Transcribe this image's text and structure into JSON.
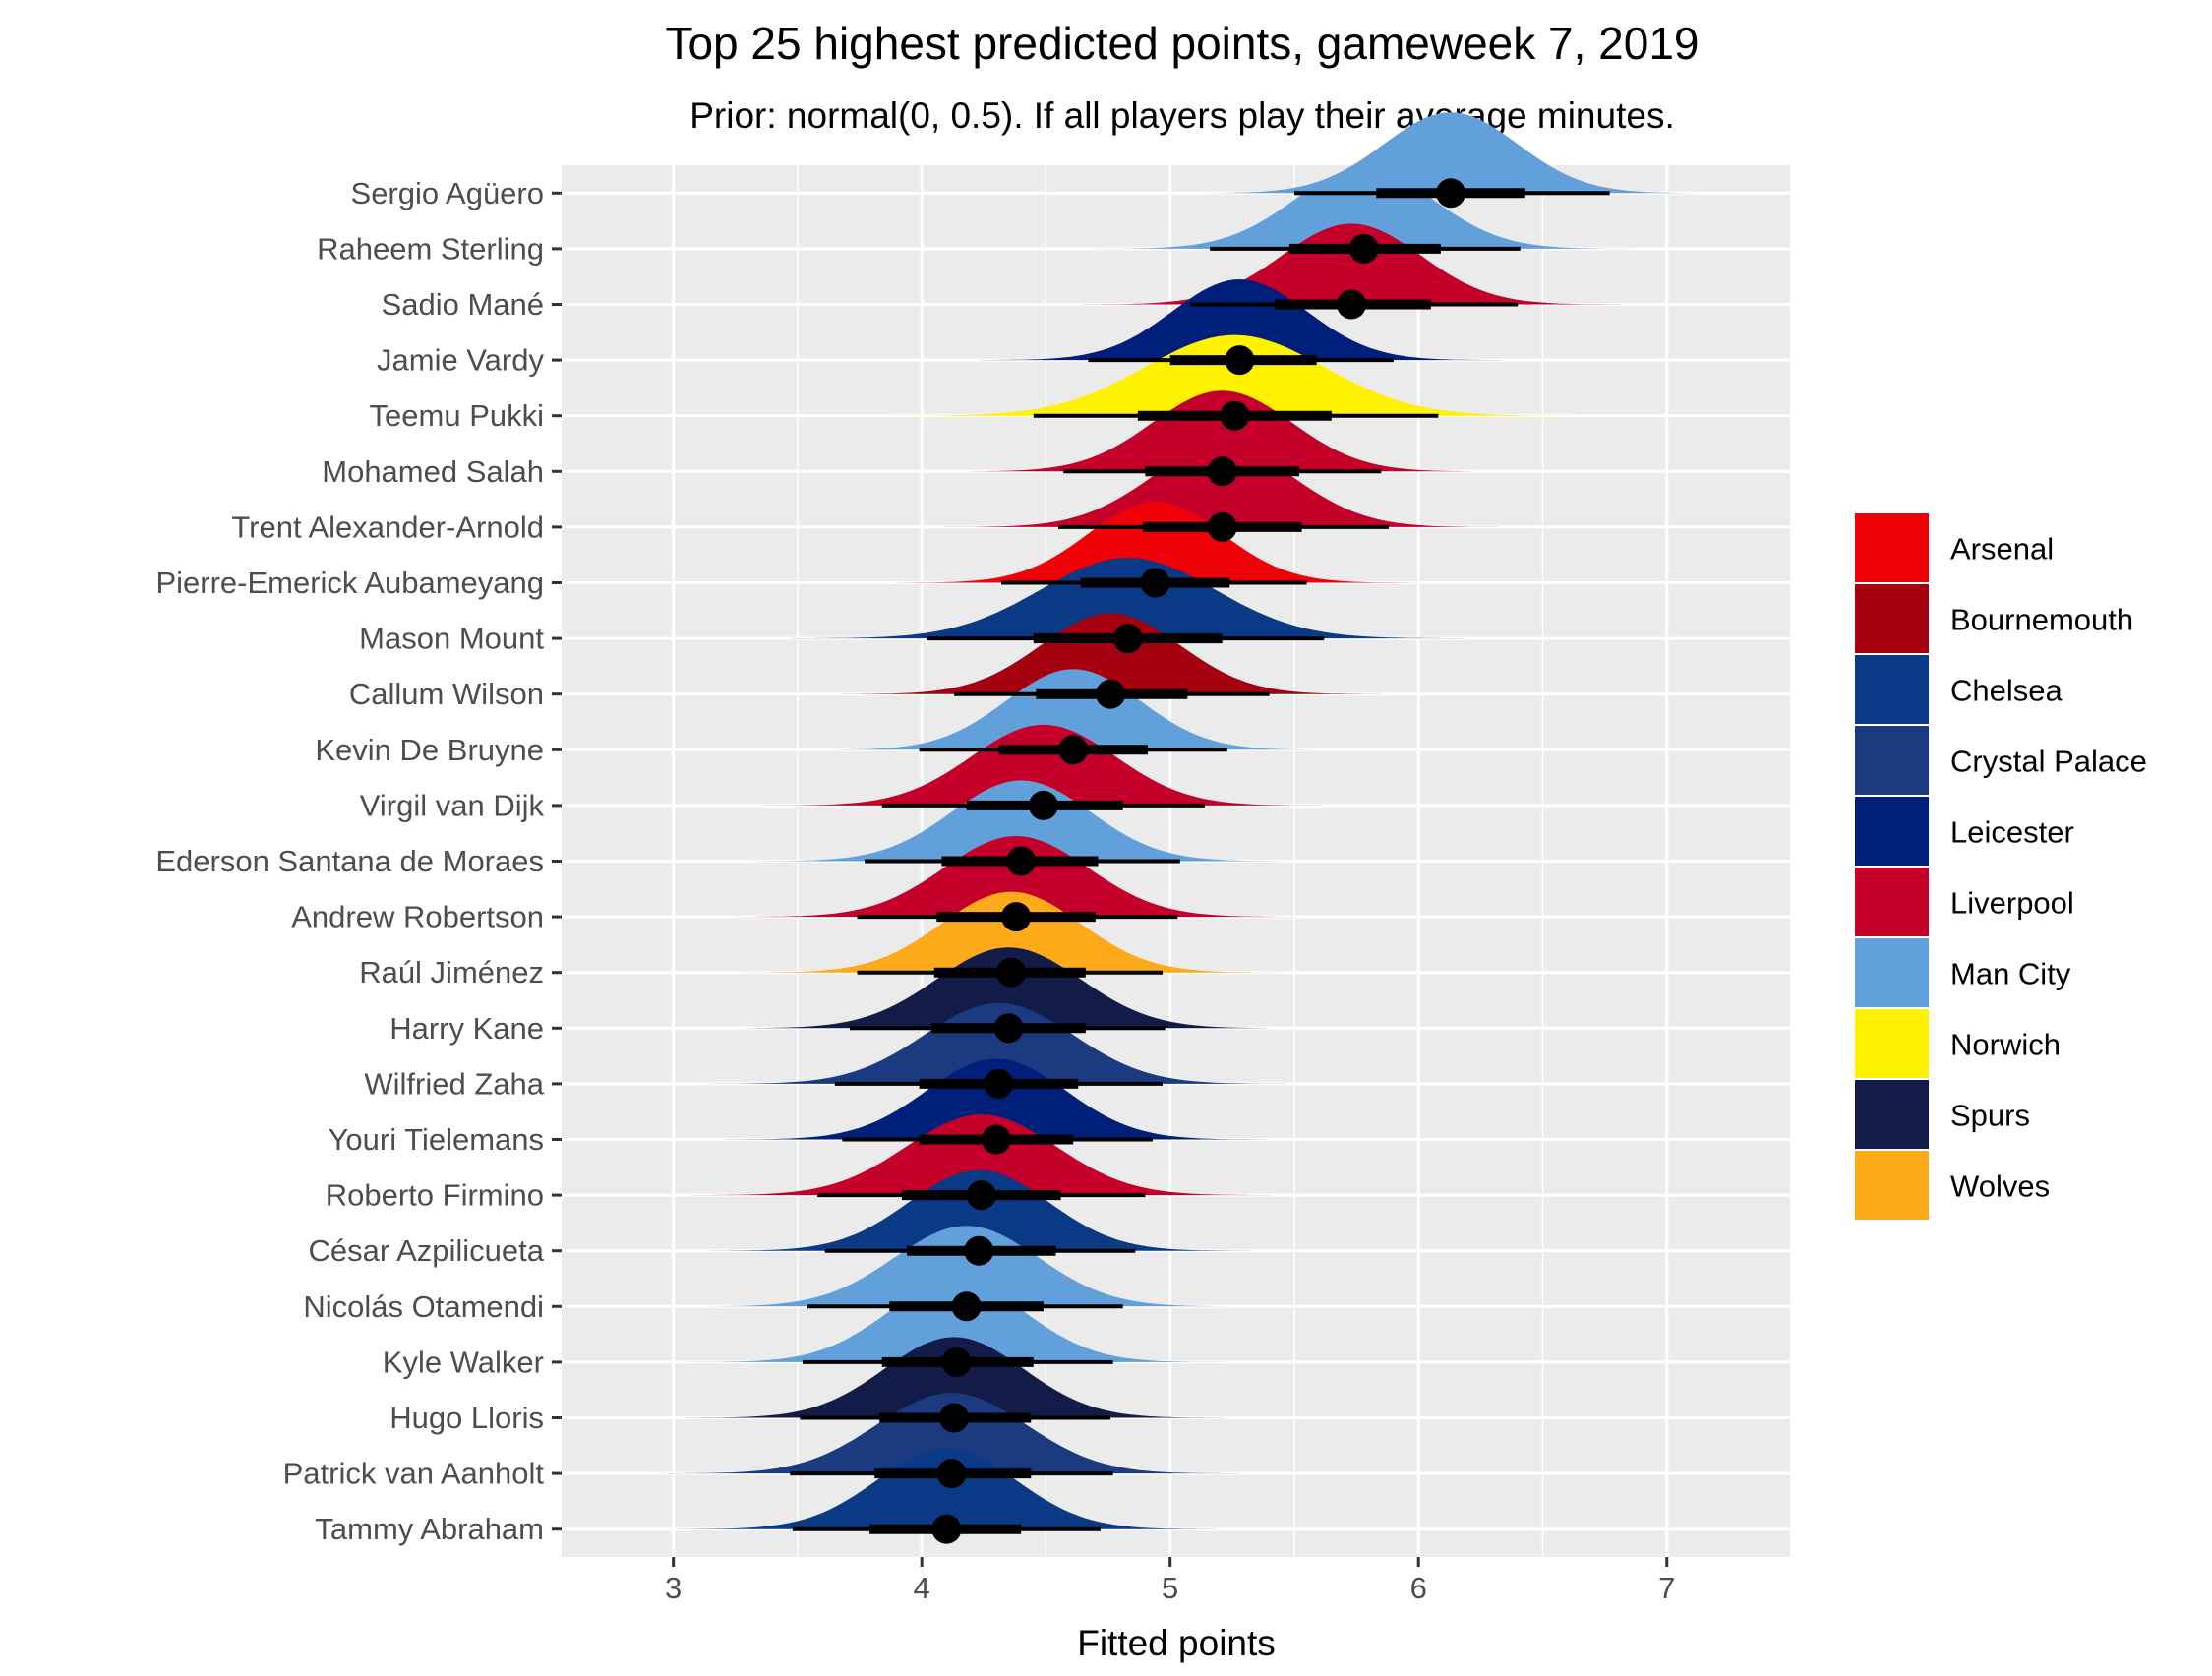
{
  "chart_data": {
    "type": "ridgeline",
    "title": "Top 25 highest predicted points, gameweek 7, 2019",
    "subtitle": "Prior: normal(0, 0.5). If all players play their average minutes.",
    "xlabel": "Fitted points",
    "ylabel": "",
    "xlim": [
      2.55,
      7.5
    ],
    "x_ticks": [
      3,
      4,
      5,
      6,
      7
    ],
    "grid": true,
    "legend_position": "right",
    "teams": [
      {
        "name": "Arsenal",
        "color": "#EF0107"
      },
      {
        "name": "Bournemouth",
        "color": "#A50010"
      },
      {
        "name": "Chelsea",
        "color": "#0A3A85"
      },
      {
        "name": "Crystal Palace",
        "color": "#1B3A80"
      },
      {
        "name": "Leicester",
        "color": "#001F7A"
      },
      {
        "name": "Liverpool",
        "color": "#C4002A"
      },
      {
        "name": "Man City",
        "color": "#62A0DB"
      },
      {
        "name": "Norwich",
        "color": "#FFF200"
      },
      {
        "name": "Spurs",
        "color": "#131B48"
      },
      {
        "name": "Wolves",
        "color": "#FDAA1B"
      }
    ],
    "players": [
      {
        "name": "Sergio Agüero",
        "team": "Man City",
        "median": 6.13,
        "inner": [
          5.83,
          6.43
        ],
        "outer": [
          5.5,
          6.77
        ],
        "sd": 0.27
      },
      {
        "name": "Raheem Sterling",
        "team": "Man City",
        "median": 5.78,
        "inner": [
          5.48,
          6.09
        ],
        "outer": [
          5.16,
          6.41
        ],
        "sd": 0.28
      },
      {
        "name": "Sadio Mané",
        "team": "Liverpool",
        "median": 5.73,
        "inner": [
          5.42,
          6.05
        ],
        "outer": [
          5.08,
          6.4
        ],
        "sd": 0.28
      },
      {
        "name": "Jamie Vardy",
        "team": "Leicester",
        "median": 5.28,
        "inner": [
          5.0,
          5.59
        ],
        "outer": [
          4.67,
          5.9
        ],
        "sd": 0.27
      },
      {
        "name": "Teemu Pukki",
        "team": "Norwich",
        "median": 5.26,
        "inner": [
          4.87,
          5.65
        ],
        "outer": [
          4.45,
          6.08
        ],
        "sd": 0.36
      },
      {
        "name": "Mohamed Salah",
        "team": "Liverpool",
        "median": 5.21,
        "inner": [
          4.9,
          5.52
        ],
        "outer": [
          4.57,
          5.85
        ],
        "sd": 0.28
      },
      {
        "name": "Trent Alexander-Arnold",
        "team": "Liverpool",
        "median": 5.21,
        "inner": [
          4.89,
          5.53
        ],
        "outer": [
          4.55,
          5.88
        ],
        "sd": 0.29
      },
      {
        "name": "Pierre-Emerick Aubameyang",
        "team": "Arsenal",
        "median": 4.94,
        "inner": [
          4.64,
          5.24
        ],
        "outer": [
          4.32,
          5.55
        ],
        "sd": 0.27
      },
      {
        "name": "Mason Mount",
        "team": "Chelsea",
        "median": 4.83,
        "inner": [
          4.45,
          5.21
        ],
        "outer": [
          4.02,
          5.62
        ],
        "sd": 0.35
      },
      {
        "name": "Callum Wilson",
        "team": "Bournemouth",
        "median": 4.76,
        "inner": [
          4.46,
          5.07
        ],
        "outer": [
          4.13,
          5.4
        ],
        "sd": 0.28
      },
      {
        "name": "Kevin De Bruyne",
        "team": "Man City",
        "median": 4.61,
        "inner": [
          4.31,
          4.91
        ],
        "outer": [
          3.99,
          5.23
        ],
        "sd": 0.27
      },
      {
        "name": "Virgil van Dijk",
        "team": "Liverpool",
        "median": 4.49,
        "inner": [
          4.18,
          4.81
        ],
        "outer": [
          3.84,
          5.14
        ],
        "sd": 0.29
      },
      {
        "name": "Ederson Santana de Moraes",
        "team": "Man City",
        "median": 4.4,
        "inner": [
          4.08,
          4.71
        ],
        "outer": [
          3.77,
          5.04
        ],
        "sd": 0.28
      },
      {
        "name": "Andrew Robertson",
        "team": "Liverpool",
        "median": 4.38,
        "inner": [
          4.06,
          4.7
        ],
        "outer": [
          3.74,
          5.03
        ],
        "sd": 0.29
      },
      {
        "name": "Raúl Jiménez",
        "team": "Wolves",
        "median": 4.36,
        "inner": [
          4.05,
          4.66
        ],
        "outer": [
          3.74,
          4.97
        ],
        "sd": 0.28
      },
      {
        "name": "Harry Kane",
        "team": "Spurs",
        "median": 4.35,
        "inner": [
          4.04,
          4.66
        ],
        "outer": [
          3.71,
          4.98
        ],
        "sd": 0.29
      },
      {
        "name": "Wilfried Zaha",
        "team": "Crystal Palace",
        "median": 4.31,
        "inner": [
          3.99,
          4.63
        ],
        "outer": [
          3.65,
          4.97
        ],
        "sd": 0.3
      },
      {
        "name": "Youri Tielemans",
        "team": "Leicester",
        "median": 4.3,
        "inner": [
          3.99,
          4.61
        ],
        "outer": [
          3.68,
          4.93
        ],
        "sd": 0.28
      },
      {
        "name": "Roberto Firmino",
        "team": "Liverpool",
        "median": 4.24,
        "inner": [
          3.92,
          4.56
        ],
        "outer": [
          3.58,
          4.9
        ],
        "sd": 0.3
      },
      {
        "name": "César Azpilicueta",
        "team": "Chelsea",
        "median": 4.23,
        "inner": [
          3.94,
          4.54
        ],
        "outer": [
          3.61,
          4.86
        ],
        "sd": 0.28
      },
      {
        "name": "Nicolás Otamendi",
        "team": "Man City",
        "median": 4.18,
        "inner": [
          3.87,
          4.49
        ],
        "outer": [
          3.54,
          4.81
        ],
        "sd": 0.29
      },
      {
        "name": "Kyle Walker",
        "team": "Man City",
        "median": 4.14,
        "inner": [
          3.84,
          4.45
        ],
        "outer": [
          3.52,
          4.77
        ],
        "sd": 0.28
      },
      {
        "name": "Hugo Lloris",
        "team": "Spurs",
        "median": 4.13,
        "inner": [
          3.83,
          4.44
        ],
        "outer": [
          3.51,
          4.76
        ],
        "sd": 0.28
      },
      {
        "name": "Patrick van Aanholt",
        "team": "Crystal Palace",
        "median": 4.12,
        "inner": [
          3.81,
          4.44
        ],
        "outer": [
          3.47,
          4.77
        ],
        "sd": 0.3
      },
      {
        "name": "Tammy Abraham",
        "team": "Chelsea",
        "median": 4.1,
        "inner": [
          3.79,
          4.4
        ],
        "outer": [
          3.48,
          4.72
        ],
        "sd": 0.28
      }
    ]
  }
}
